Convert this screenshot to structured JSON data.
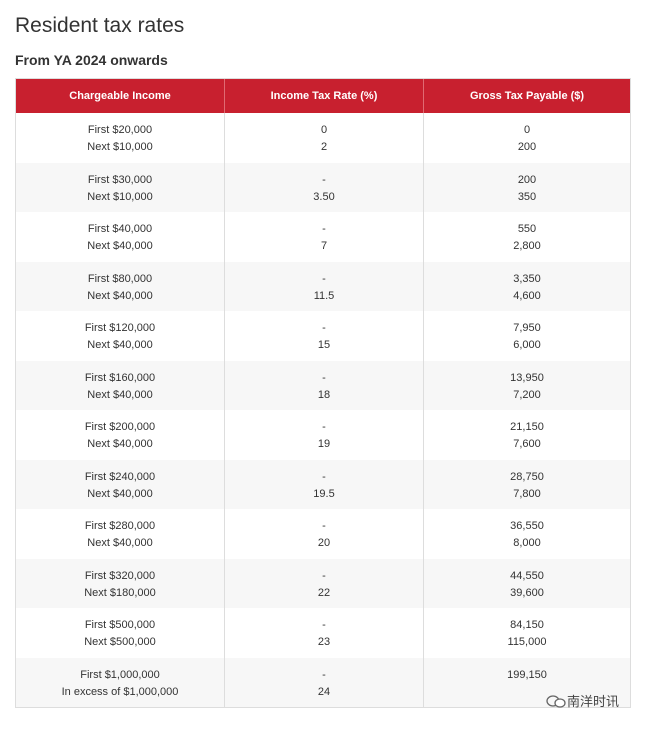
{
  "title": "Resident tax rates",
  "subtitle": "From YA 2024 onwards",
  "table": {
    "header": [
      "Chargeable Income",
      "Income Tax Rate (%)",
      "Gross Tax Payable ($)"
    ],
    "rows": [
      [
        [
          "First $20,000",
          "Next $10,000"
        ],
        [
          "0",
          "2"
        ],
        [
          "0",
          "200"
        ]
      ],
      [
        [
          "First $30,000",
          "Next $10,000"
        ],
        [
          "-",
          "3.50"
        ],
        [
          "200",
          "350"
        ]
      ],
      [
        [
          "First $40,000",
          "Next $40,000"
        ],
        [
          "-",
          "7"
        ],
        [
          "550",
          "2,800"
        ]
      ],
      [
        [
          "First $80,000",
          "Next $40,000"
        ],
        [
          "-",
          "11.5"
        ],
        [
          "3,350",
          "4,600"
        ]
      ],
      [
        [
          "First $120,000",
          "Next $40,000"
        ],
        [
          "-",
          "15"
        ],
        [
          "7,950",
          "6,000"
        ]
      ],
      [
        [
          "First $160,000",
          "Next $40,000"
        ],
        [
          "-",
          "18"
        ],
        [
          "13,950",
          "7,200"
        ]
      ],
      [
        [
          "First $200,000",
          "Next $40,000"
        ],
        [
          "-",
          "19"
        ],
        [
          "21,150",
          "7,600"
        ]
      ],
      [
        [
          "First $240,000",
          "Next $40,000"
        ],
        [
          "-",
          "19.5"
        ],
        [
          "28,750",
          "7,800"
        ]
      ],
      [
        [
          "First $280,000",
          "Next $40,000"
        ],
        [
          "-",
          "20"
        ],
        [
          "36,550",
          "8,000"
        ]
      ],
      [
        [
          "First $320,000",
          "Next $180,000"
        ],
        [
          "-",
          "22"
        ],
        [
          "44,550",
          "39,600"
        ]
      ],
      [
        [
          "First $500,000",
          "Next $500,000"
        ],
        [
          "-",
          "23"
        ],
        [
          "84,150",
          "115,000"
        ]
      ],
      [
        [
          "First $1,000,000",
          "In excess of $1,000,000"
        ],
        [
          "-",
          "24"
        ],
        [
          "199,150"
        ]
      ]
    ]
  },
  "watermark": "南洋时讯"
}
